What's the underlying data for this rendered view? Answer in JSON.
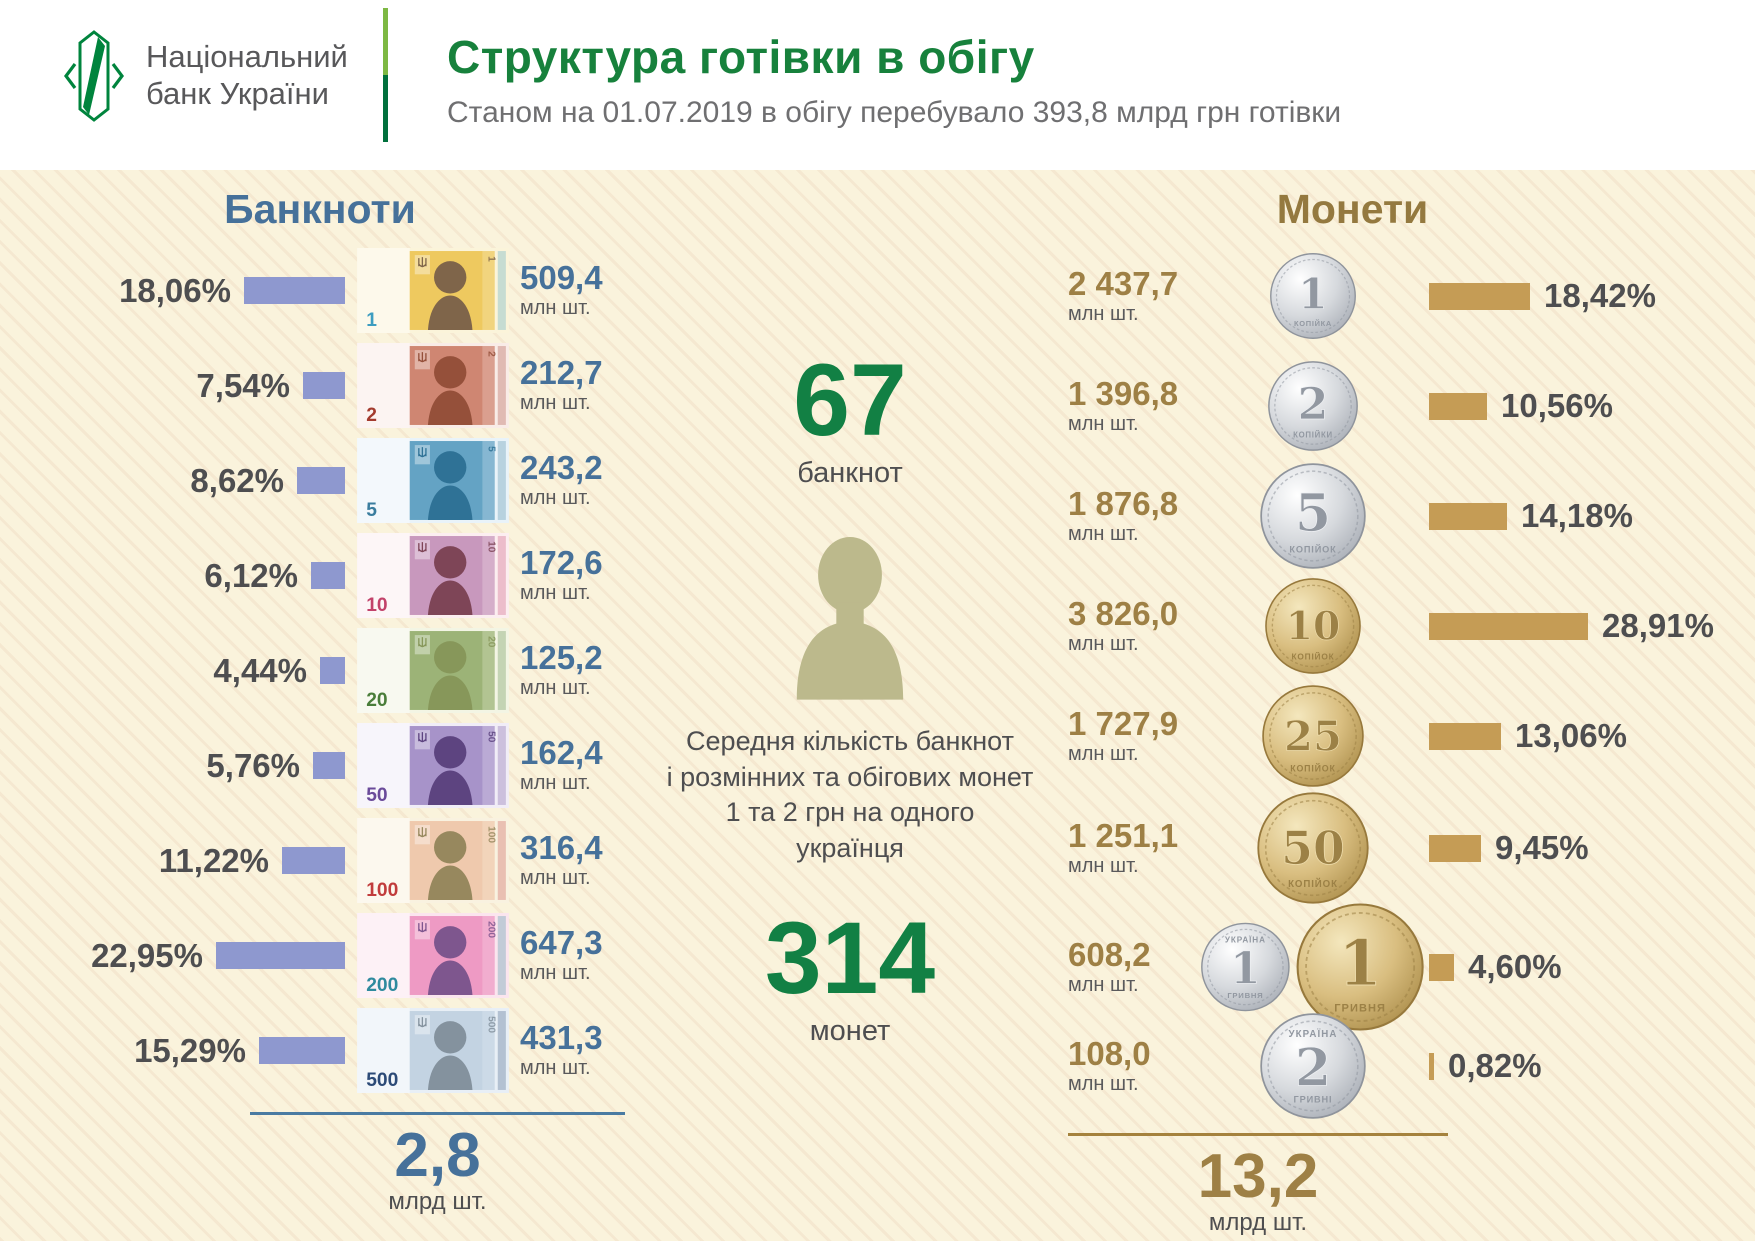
{
  "header": {
    "logo_line1": "Національний",
    "logo_line2": "банк України",
    "title": "Структура готівки в обігу",
    "subtitle": "Станом на 01.07.2019 в обігу перебувало 393,8 млрд грн готівки"
  },
  "colors": {
    "green": "#17813c",
    "blue_text": "#46719a",
    "gold_text": "#9e8045",
    "bar_blue": "#8e98cf",
    "bar_gold": "#c59c55",
    "dark_text": "#4e4e50",
    "background": "#faf3dc"
  },
  "banknotes": {
    "title": "Банкноти",
    "unit": "млн шт.",
    "items": [
      {
        "denom": "1",
        "pct": "18,06%",
        "pct_value": 18.06,
        "count": "509,4",
        "bg": "#fbf4da",
        "panel": "#eec95f",
        "sil": "#7f654a",
        "num": "#3d9dc0"
      },
      {
        "denom": "2",
        "pct": "7,54%",
        "pct_value": 7.54,
        "count": "212,7",
        "bg": "#f9ece7",
        "panel": "#cf8672",
        "sil": "#95503a",
        "num": "#a33b2e"
      },
      {
        "denom": "5",
        "pct": "8,62%",
        "pct_value": 8.62,
        "count": "243,2",
        "bg": "#e9f3f9",
        "panel": "#64a3c4",
        "sil": "#2f7296",
        "num": "#3a7d9e"
      },
      {
        "denom": "10",
        "pct": "6,12%",
        "pct_value": 6.12,
        "count": "172,6",
        "bg": "#fceef0",
        "panel": "#c898bd",
        "sil": "#7e4557",
        "num": "#c2426a"
      },
      {
        "denom": "20",
        "pct": "4,44%",
        "pct_value": 4.44,
        "count": "125,2",
        "bg": "#f3f5e4",
        "panel": "#9cb377",
        "sil": "#87975a",
        "num": "#4a7d3a"
      },
      {
        "denom": "50",
        "pct": "5,76%",
        "pct_value": 5.76,
        "count": "162,4",
        "bg": "#f1edf7",
        "panel": "#a793c9",
        "sil": "#5d4480",
        "num": "#6a4a9a"
      },
      {
        "denom": "100",
        "pct": "11,22%",
        "pct_value": 11.22,
        "count": "316,4",
        "bg": "#f9f2e0",
        "panel": "#efc9ad",
        "sil": "#97885e",
        "num": "#c13c3c"
      },
      {
        "denom": "200",
        "pct": "22,95%",
        "pct_value": 22.95,
        "count": "647,3",
        "bg": "#fbe5ee",
        "panel": "#ee9ac4",
        "sil": "#7e568e",
        "num": "#2f8a9e"
      },
      {
        "denom": "500",
        "pct": "15,29%",
        "pct_value": 15.29,
        "count": "431,3",
        "bg": "#e8eff6",
        "panel": "#c3d3e2",
        "sil": "#84929e",
        "num": "#2c4a77"
      }
    ],
    "total_value": "2,8",
    "total_unit": "млрд шт."
  },
  "center": {
    "banknotes_count": "67",
    "banknotes_label": "банкнот",
    "caption": "Середня кількість банкнот\nі розмінних та обігових монет\n1 та 2 грн на одного\nукраїнця",
    "coins_count": "314",
    "coins_label": "монет"
  },
  "coins": {
    "title": "Монети",
    "unit": "млн шт.",
    "items": [
      {
        "denom": "1 коп",
        "count": "2 437,7",
        "pct": "18,42%",
        "pct_value": 18.42,
        "coins": [
          {
            "metal": "silver",
            "size": 88,
            "num": "1",
            "top": "",
            "bottom": "КОПІЙКА"
          }
        ]
      },
      {
        "denom": "2 коп",
        "count": "1 396,8",
        "pct": "10,56%",
        "pct_value": 10.56,
        "coins": [
          {
            "metal": "silver",
            "size": 92,
            "num": "2",
            "top": "",
            "bottom": "КОПІЙКИ"
          }
        ]
      },
      {
        "denom": "5 коп",
        "count": "1 876,8",
        "pct": "14,18%",
        "pct_value": 14.18,
        "coins": [
          {
            "metal": "silver",
            "size": 108,
            "num": "5",
            "top": "",
            "bottom": "КОПІЙОК"
          }
        ]
      },
      {
        "denom": "10 коп",
        "count": "3 826,0",
        "pct": "28,91%",
        "pct_value": 28.91,
        "coins": [
          {
            "metal": "gold",
            "size": 98,
            "num": "10",
            "top": "",
            "bottom": "КОПІЙОК"
          }
        ]
      },
      {
        "denom": "25 коп",
        "count": "1 727,9",
        "pct": "13,06%",
        "pct_value": 13.06,
        "coins": [
          {
            "metal": "gold",
            "size": 104,
            "num": "25",
            "top": "",
            "bottom": "КОПІЙОК"
          }
        ]
      },
      {
        "denom": "50 коп",
        "count": "1 251,1",
        "pct": "9,45%",
        "pct_value": 9.45,
        "coins": [
          {
            "metal": "gold",
            "size": 114,
            "num": "50",
            "top": "",
            "bottom": "КОПІЙОК"
          }
        ]
      },
      {
        "denom": "1 грн",
        "count": "608,2",
        "pct": "4,60%",
        "pct_value": 4.6,
        "coins": [
          {
            "metal": "silver",
            "size": 92,
            "num": "1",
            "top": "УКРАЇНА",
            "bottom": "ГРИВНЯ"
          },
          {
            "metal": "gold",
            "size": 132,
            "num": "1",
            "top": "",
            "bottom": "ГРИВНЯ"
          }
        ]
      },
      {
        "denom": "2 грн",
        "count": "108,0",
        "pct": "0,82%",
        "pct_value": 0.82,
        "coins": [
          {
            "metal": "silver",
            "size": 108,
            "num": "2",
            "top": "УКРАЇНА",
            "bottom": "ГРИВНІ"
          }
        ]
      }
    ],
    "total_value": "13,2",
    "total_unit": "млрд шт."
  },
  "chart_data": [
    {
      "type": "bar",
      "title": "Банкноти",
      "categories": [
        "1 грн",
        "2 грн",
        "5 грн",
        "10 грн",
        "20 грн",
        "50 грн",
        "100 грн",
        "200 грн",
        "500 грн"
      ],
      "series": [
        {
          "name": "частка, %",
          "values": [
            18.06,
            7.54,
            8.62,
            6.12,
            4.44,
            5.76,
            11.22,
            22.95,
            15.29
          ]
        },
        {
          "name": "кількість, млн шт.",
          "values": [
            509.4,
            212.7,
            243.2,
            172.6,
            125.2,
            162.4,
            316.4,
            647.3,
            431.3
          ]
        }
      ],
      "total": {
        "value": 2.8,
        "unit": "млрд шт."
      },
      "legend_position": "none",
      "grid": false
    },
    {
      "type": "bar",
      "title": "Монети",
      "categories": [
        "1 коп",
        "2 коп",
        "5 коп",
        "10 коп",
        "25 коп",
        "50 коп",
        "1 грн",
        "2 грн"
      ],
      "series": [
        {
          "name": "кількість, млн шт.",
          "values": [
            2437.7,
            1396.8,
            1876.8,
            3826.0,
            1727.9,
            1251.1,
            608.2,
            108.0
          ]
        },
        {
          "name": "частка, %",
          "values": [
            18.42,
            10.56,
            14.18,
            28.91,
            13.06,
            9.45,
            4.6,
            0.82
          ]
        }
      ],
      "total": {
        "value": 13.2,
        "unit": "млрд шт."
      },
      "legend_position": "none",
      "grid": false
    }
  ]
}
